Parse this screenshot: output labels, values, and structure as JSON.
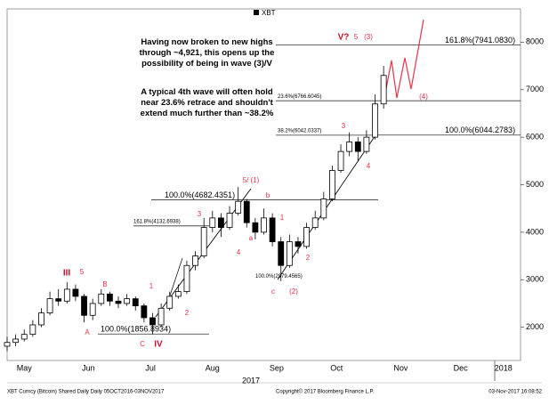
{
  "chart_data": {
    "type": "candlestick",
    "series": [
      {
        "name": "XBT",
        "color": "#000000",
        "open": [
          1600,
          1680,
          1750,
          1850,
          2050,
          2300,
          2600,
          2550,
          2800,
          2650,
          2250,
          2500,
          2700,
          2550,
          2500,
          2600,
          2450,
          2200,
          2050,
          2400,
          2650,
          2750,
          3300,
          3500,
          4100,
          4300,
          4100,
          4400,
          4650,
          4200,
          4000,
          4300,
          3800,
          3300,
          3800,
          3700,
          4100,
          4300,
          4700,
          5300,
          5700,
          5900,
          5700,
          6000,
          6700
        ],
        "high": [
          1800,
          1850,
          1950,
          2150,
          2400,
          2750,
          2800,
          2950,
          2900,
          2700,
          2600,
          2800,
          2750,
          2650,
          2700,
          2650,
          2500,
          2300,
          2500,
          2750,
          2900,
          3400,
          3600,
          4300,
          4450,
          4400,
          4550,
          4950,
          4700,
          4300,
          4500,
          4400,
          3900,
          3950,
          3900,
          4200,
          4450,
          4850,
          5400,
          5850,
          6100,
          6000,
          6150,
          6900,
          7500
        ],
        "low": [
          1500,
          1600,
          1700,
          1800,
          2000,
          2250,
          2450,
          2500,
          2550,
          2100,
          2150,
          2450,
          2450,
          2400,
          2450,
          2350,
          2100,
          1850,
          2000,
          2350,
          2600,
          2700,
          3200,
          3450,
          4000,
          3900,
          4050,
          4350,
          4100,
          3850,
          3950,
          3700,
          2970,
          3250,
          3550,
          3650,
          4050,
          4250,
          4650,
          5250,
          5600,
          5500,
          5650,
          5950,
          6600
        ],
        "close": [
          1680,
          1750,
          1850,
          2050,
          2300,
          2600,
          2550,
          2800,
          2650,
          2250,
          2500,
          2700,
          2550,
          2500,
          2600,
          2450,
          2200,
          2050,
          2400,
          2650,
          2750,
          3300,
          3500,
          4100,
          4300,
          4100,
          4400,
          4650,
          4200,
          4000,
          4300,
          3800,
          3300,
          3800,
          3700,
          4100,
          4300,
          4700,
          5300,
          5700,
          5900,
          5700,
          6000,
          6700,
          7300
        ]
      }
    ],
    "x": [
      0,
      4,
      8,
      12,
      16,
      20,
      24,
      28,
      32,
      36,
      40,
      44,
      48,
      52,
      56,
      60,
      64,
      68,
      72,
      76,
      80,
      84,
      88,
      92,
      96,
      100,
      104,
      108,
      112,
      116,
      120,
      124,
      128,
      132,
      136,
      140,
      144,
      148,
      152,
      156,
      160,
      164,
      168,
      172,
      176
    ],
    "xlim": [
      0,
      240
    ],
    "xticks": [
      {
        "value": 8,
        "label": "May"
      },
      {
        "value": 38,
        "label": "Jun"
      },
      {
        "value": 67,
        "label": "Jul"
      },
      {
        "value": 96,
        "label": "Aug"
      },
      {
        "value": 126,
        "label": "Sep"
      },
      {
        "value": 154,
        "label": "Oct"
      },
      {
        "value": 184,
        "label": "Nov"
      },
      {
        "value": 212,
        "label": "Dec"
      },
      {
        "value": 232,
        "label": "2018"
      }
    ],
    "year_label": "2017",
    "ylim": [
      1300,
      8700
    ],
    "yticks": [
      2000,
      3000,
      4000,
      5000,
      6000,
      7000,
      8000
    ],
    "levels": [
      {
        "label": "161.8%(7941.0830)",
        "value": 7941.083
      },
      {
        "label": "23.6%(6766.6045)",
        "value": 6766.6045
      },
      {
        "label": "38.2%(6042.0337)",
        "value": 6042.0337
      },
      {
        "label": "100.0%(6044.2783)",
        "value": 6044.2783
      },
      {
        "label": "100.0%(4682.4351)",
        "value": 4682.4351
      },
      {
        "label": "161.8%(4132.6938)",
        "value": 4132.6938
      },
      {
        "label": "100.0%(2979.4565)",
        "value": 2979.4565
      },
      {
        "label": "100.0%(1856.8934)",
        "value": 1856.8934
      }
    ],
    "wave_labels": [
      "III",
      "5",
      "A",
      "B",
      "1",
      "C",
      "IV",
      "2",
      "3",
      "4",
      "5/ (1)",
      "a",
      "b",
      "1",
      "2",
      "c",
      "(2)",
      "3",
      "4",
      "V?",
      "5",
      "(3)",
      "(4)"
    ],
    "notes": [
      "Having now broken to new highs through ~4,921, this opens up the possibility of being in wave (3)/V",
      "A typical 4th wave will often hold near 23.6% retrace and shouldn't extend much further than ~38.2%"
    ],
    "footer": [
      "XBT Curncy (Bitcoin) Shared Daily  Daily 05OCT2016-03NOV2017",
      "Copyright© 2017 Bloomberg Finance L.P.",
      "03-Nov-2017 16:08:52"
    ]
  }
}
